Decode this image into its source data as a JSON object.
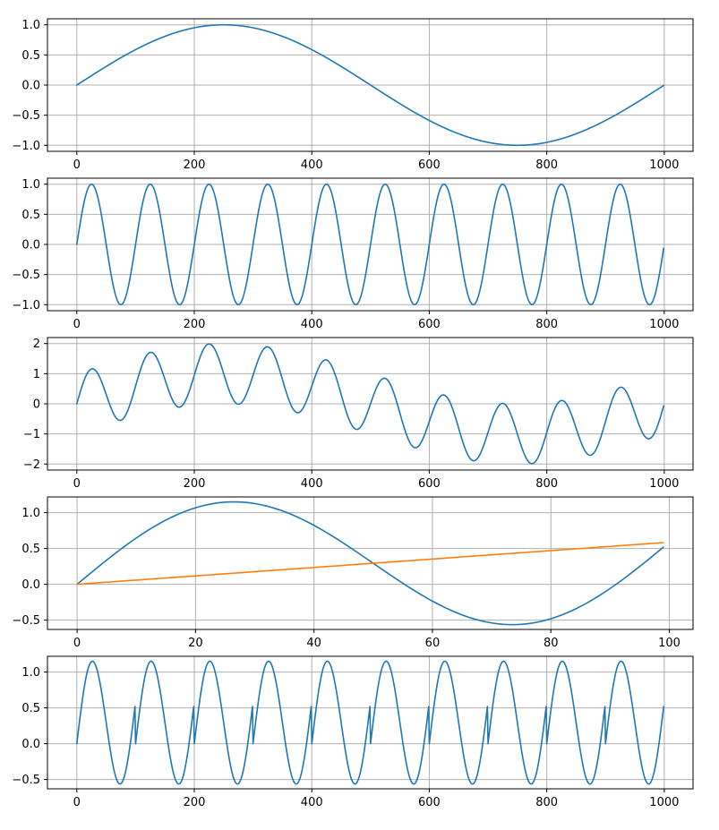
{
  "chart_data": [
    {
      "type": "line",
      "title": "",
      "xlabel": "",
      "ylabel": "",
      "grid": true,
      "xlim": [
        -50,
        1049
      ],
      "ylim": [
        -1.1,
        1.1
      ],
      "xticks": [
        0,
        200,
        400,
        600,
        800,
        1000
      ],
      "xtick_labels": [
        "0",
        "200",
        "400",
        "600",
        "800",
        "1000"
      ],
      "yticks": [
        -1.0,
        -0.5,
        0.0,
        0.5,
        1.0
      ],
      "ytick_labels": [
        "−1.0",
        "−0.5",
        "0.0",
        "0.5",
        "1.0"
      ],
      "series": [
        {
          "color": "#1f77b4",
          "description": "y = sin(2*pi*n/1000), n = 0..999",
          "formula": {
            "kind": "sine",
            "n": 1000,
            "amp": 1,
            "period": 1000
          }
        }
      ]
    },
    {
      "type": "line",
      "title": "",
      "xlabel": "",
      "ylabel": "",
      "grid": true,
      "xlim": [
        -50,
        1049
      ],
      "ylim": [
        -1.1,
        1.1
      ],
      "xticks": [
        0,
        200,
        400,
        600,
        800,
        1000
      ],
      "xtick_labels": [
        "0",
        "200",
        "400",
        "600",
        "800",
        "1000"
      ],
      "yticks": [
        -1.0,
        -0.5,
        0.0,
        0.5,
        1.0
      ],
      "ytick_labels": [
        "−1.0",
        "−0.5",
        "0.0",
        "0.5",
        "1.0"
      ],
      "series": [
        {
          "color": "#1f77b4",
          "description": "y = sin(2*pi*n/100), n = 0..999",
          "formula": {
            "kind": "sine",
            "n": 1000,
            "amp": 1,
            "period": 100
          }
        }
      ]
    },
    {
      "type": "line",
      "title": "",
      "xlabel": "",
      "ylabel": "",
      "grid": true,
      "xlim": [
        -50,
        1049
      ],
      "ylim": [
        -2.2,
        2.2
      ],
      "xticks": [
        0,
        200,
        400,
        600,
        800,
        1000
      ],
      "xtick_labels": [
        "0",
        "200",
        "400",
        "600",
        "800",
        "1000"
      ],
      "yticks": [
        -2,
        -1,
        0,
        1,
        2
      ],
      "ytick_labels": [
        "−2",
        "−1",
        "0",
        "1",
        "2"
      ],
      "series": [
        {
          "color": "#1f77b4",
          "description": "y = sin(2*pi*n/1000) + sin(2*pi*n/100), n = 0..999",
          "formula": {
            "kind": "sum_sines",
            "n": 1000,
            "periods": [
              1000,
              100
            ]
          }
        }
      ]
    },
    {
      "type": "line",
      "title": "",
      "xlabel": "",
      "ylabel": "",
      "grid": true,
      "xlim": [
        -5,
        104
      ],
      "ylim": [
        -0.63,
        1.22
      ],
      "xticks": [
        0,
        20,
        40,
        60,
        80,
        100
      ],
      "xtick_labels": [
        "0",
        "20",
        "40",
        "60",
        "80",
        "100"
      ],
      "yticks": [
        -0.5,
        0.0,
        0.5,
        1.0
      ],
      "ytick_labels": [
        "−0.5",
        "0.0",
        "0.5",
        "1.0"
      ],
      "series": [
        {
          "color": "#1f77b4",
          "description": "y = sin(2*pi*n/100) + n*0.005882, n = 0..99",
          "formula": {
            "kind": "sine_plus_ramp",
            "n": 100,
            "period": 100,
            "slope": 0.005882
          }
        },
        {
          "color": "#ff7f0e",
          "description": "y = n*0.005882, n = 0..99",
          "formula": {
            "kind": "ramp",
            "n": 100,
            "slope": 0.005882
          }
        }
      ]
    },
    {
      "type": "line",
      "title": "",
      "xlabel": "",
      "ylabel": "",
      "grid": true,
      "xlim": [
        -50,
        1049
      ],
      "ylim": [
        -0.63,
        1.22
      ],
      "xticks": [
        0,
        200,
        400,
        600,
        800,
        1000
      ],
      "xtick_labels": [
        "0",
        "200",
        "400",
        "600",
        "800",
        "1000"
      ],
      "yticks": [
        -0.5,
        0.0,
        0.5,
        1.0
      ],
      "ytick_labels": [
        "−0.5",
        "0.0",
        "0.5",
        "1.0"
      ],
      "series": [
        {
          "color": "#1f77b4",
          "description": "y = sin(2*pi*n/100) + (n mod 100)*0.005882, n = 0..999",
          "formula": {
            "kind": "sine_plus_sawtooth",
            "n": 1000,
            "period": 100,
            "slope": 0.005882
          }
        }
      ]
    }
  ]
}
